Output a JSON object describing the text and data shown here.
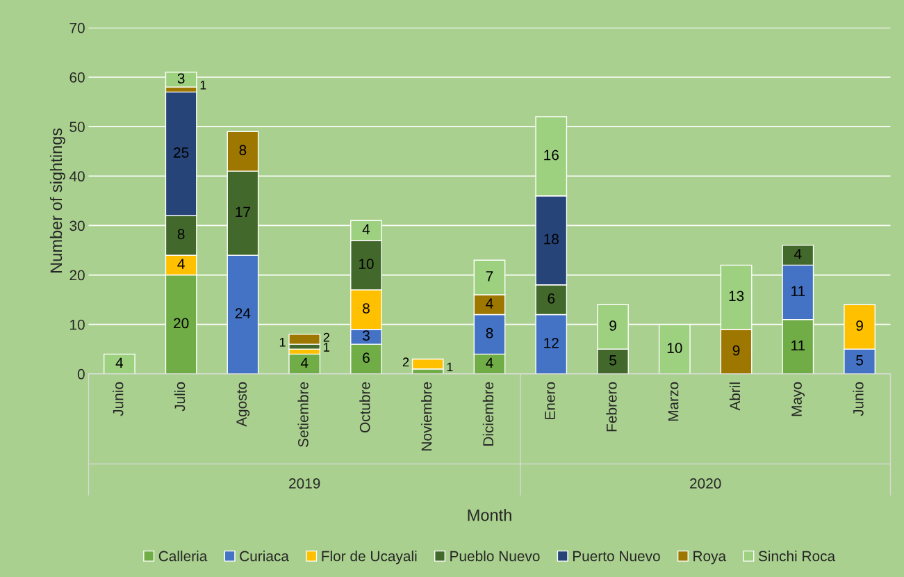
{
  "chart_data": {
    "type": "bar",
    "stacked": true,
    "xlabel": "Month",
    "ylabel": "Number of sightings",
    "categories": [
      "Junio",
      "Julio",
      "Agosto",
      "Setiembre",
      "Octubre",
      "Noviembre",
      "Diciembre",
      "Enero",
      "Febrero",
      "Marzo",
      "Abril",
      "Mayo",
      "Junio"
    ],
    "series": [
      {
        "name": "Calleria",
        "color": "#70ad47",
        "values": [
          null,
          20,
          null,
          4,
          6,
          1,
          4,
          null,
          null,
          null,
          null,
          11,
          null
        ]
      },
      {
        "name": "Curiaca",
        "color": "#4472c4",
        "values": [
          null,
          null,
          24,
          null,
          3,
          null,
          8,
          12,
          null,
          null,
          null,
          11,
          5
        ]
      },
      {
        "name": "Flor de Ucayali",
        "color": "#ffc000",
        "values": [
          null,
          4,
          null,
          1,
          8,
          2,
          null,
          null,
          null,
          null,
          null,
          null,
          9
        ]
      },
      {
        "name": "Pueblo Nuevo",
        "color": "#43682b",
        "values": [
          null,
          8,
          17,
          1,
          10,
          null,
          null,
          6,
          5,
          null,
          null,
          4,
          null
        ]
      },
      {
        "name": "Puerto Nuevo",
        "color": "#264478",
        "values": [
          null,
          25,
          null,
          null,
          null,
          null,
          null,
          18,
          null,
          null,
          null,
          null,
          null
        ]
      },
      {
        "name": "Roya",
        "color": "#9e7700",
        "values": [
          null,
          1,
          8,
          2,
          null,
          null,
          4,
          null,
          null,
          null,
          9,
          null,
          null
        ]
      },
      {
        "name": "Sinchi Roca",
        "color": "#9dd17f",
        "values": [
          4,
          3,
          null,
          null,
          4,
          null,
          7,
          16,
          9,
          10,
          13,
          null,
          null
        ]
      }
    ],
    "annotations": [
      "2019",
      "2020"
    ],
    "ylim": [
      0,
      70
    ],
    "yticks": [
      0,
      10,
      20,
      30,
      40,
      50,
      60,
      70
    ],
    "grid": "y",
    "legend": "bottom",
    "data_labels": true
  }
}
